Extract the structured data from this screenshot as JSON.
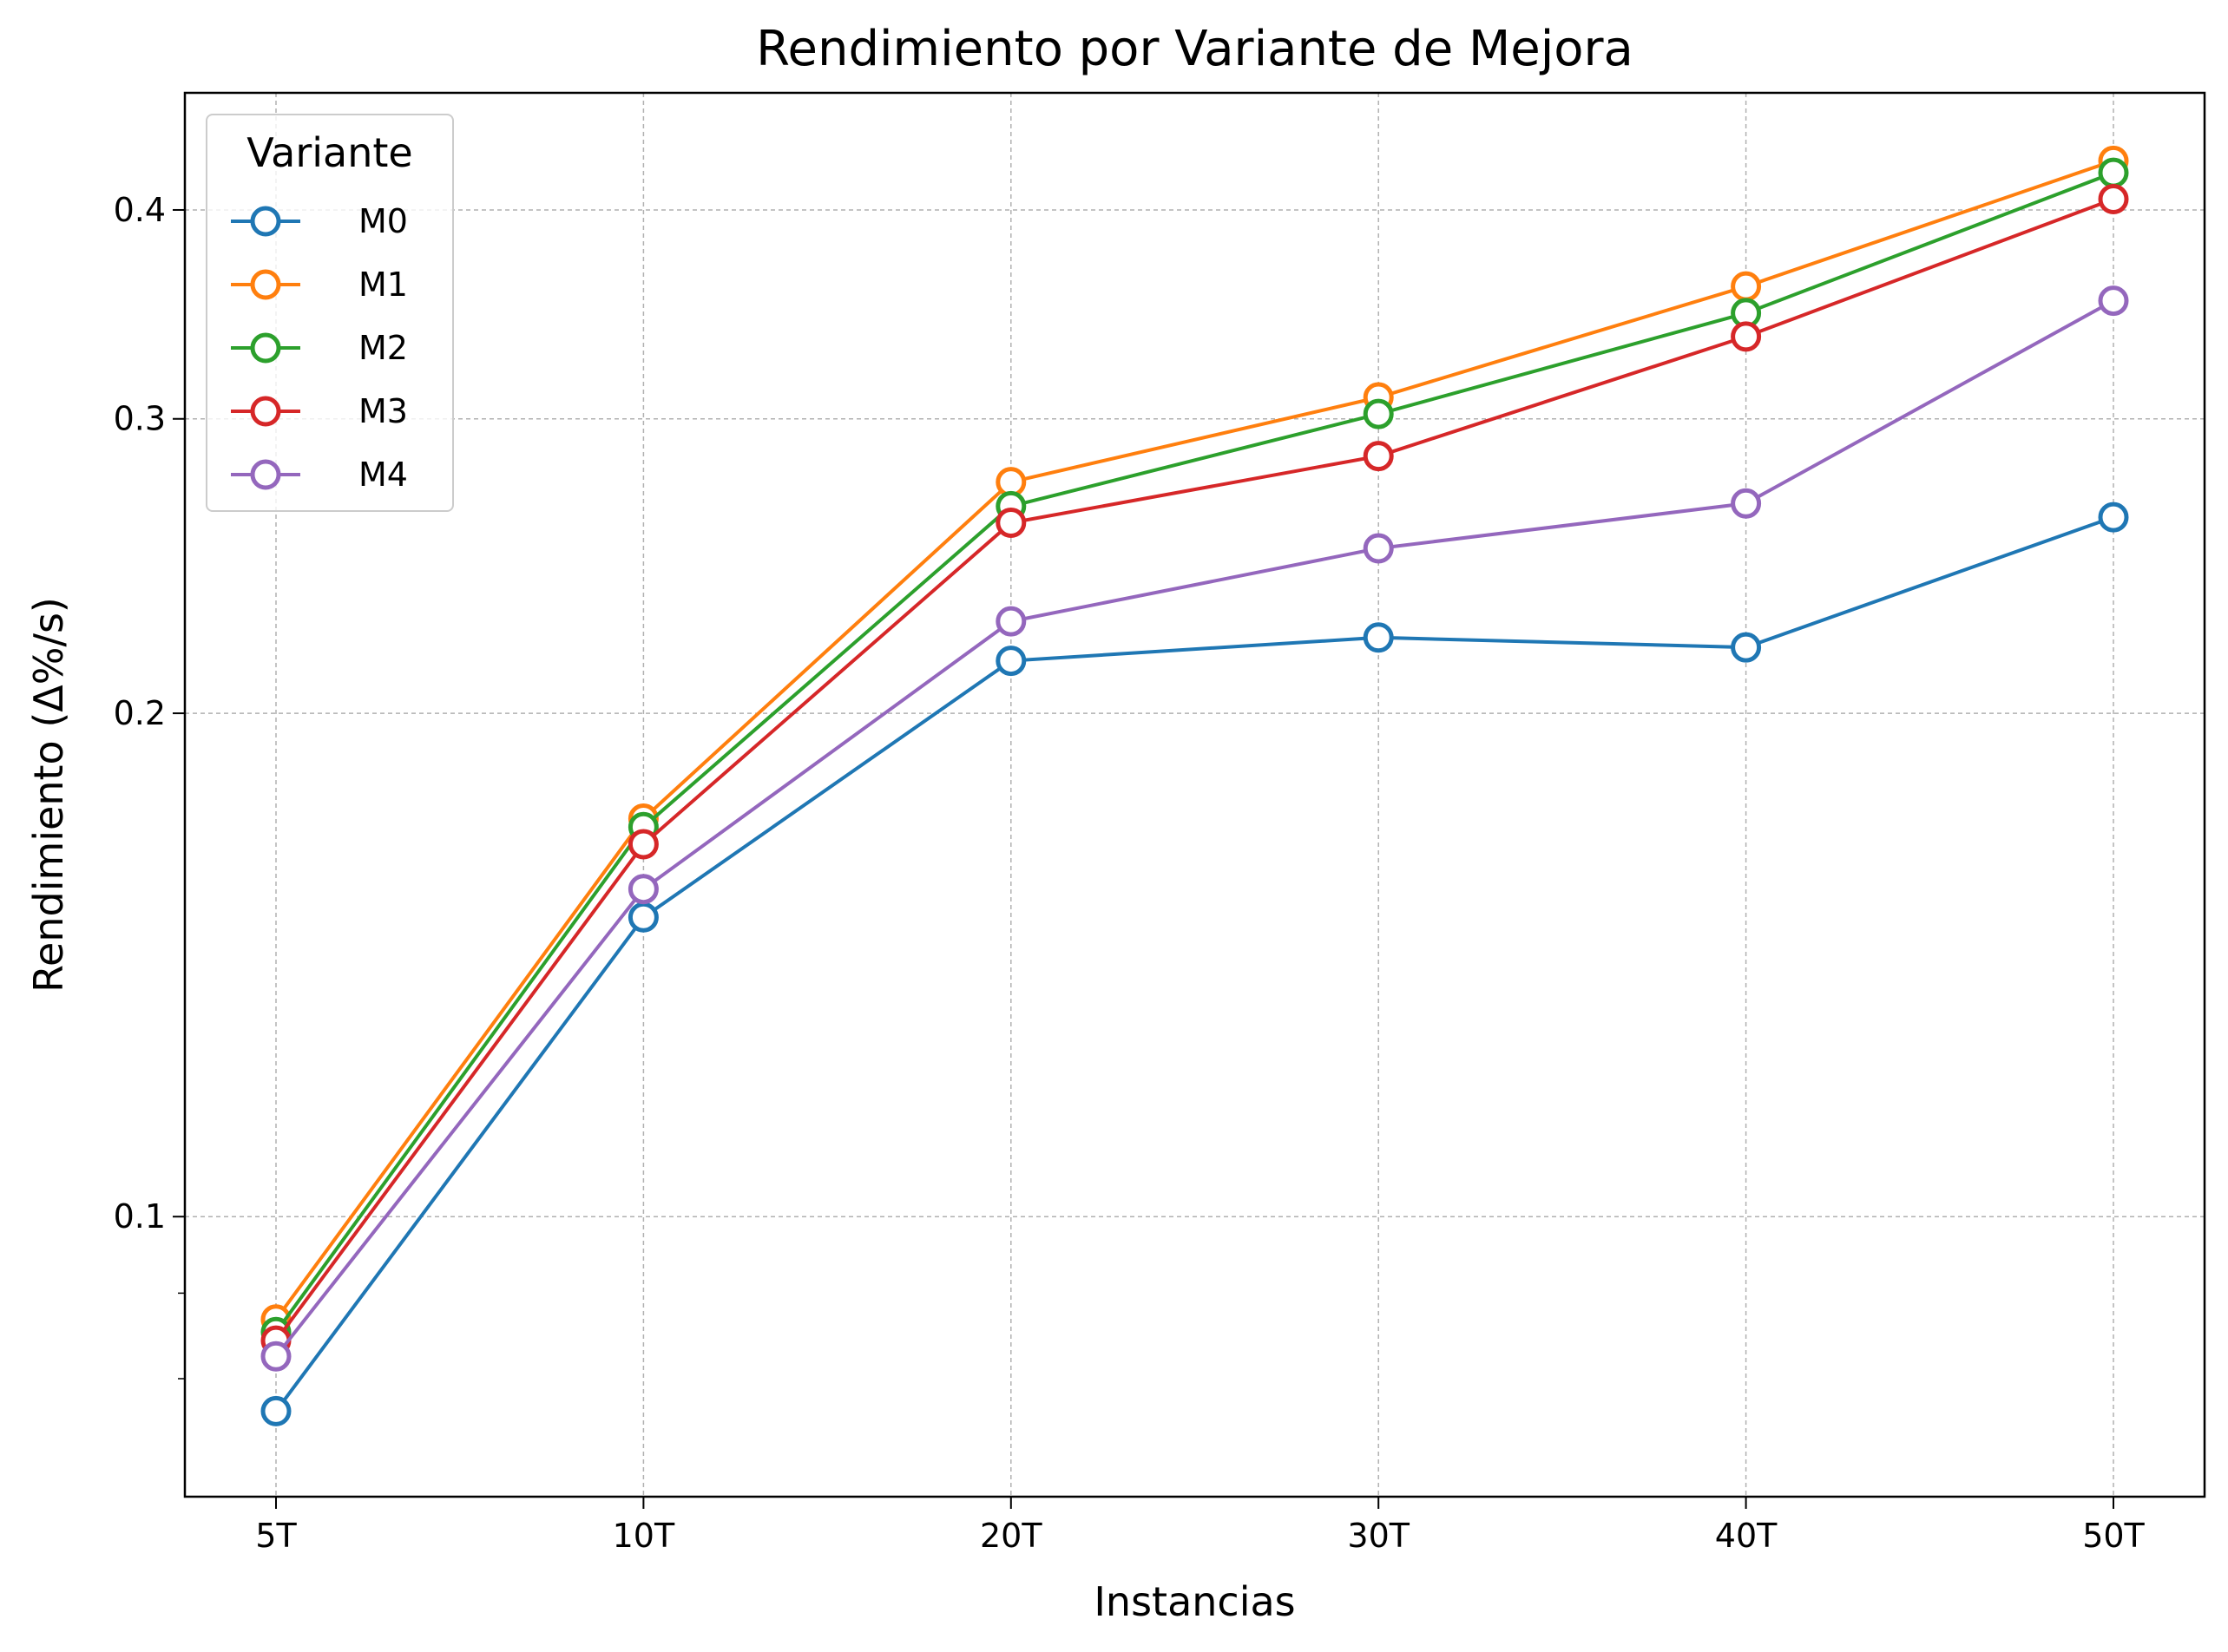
{
  "chart_data": {
    "type": "line",
    "title": "Rendimiento por Variante de Mejora",
    "xlabel": "Instancias",
    "ylabel": "Rendimiento (Δ%/s)",
    "y_scale": "log",
    "ylim": [
      0.068,
      0.47
    ],
    "yticks": [
      0.1,
      0.2,
      0.3,
      0.4
    ],
    "ytick_labels": [
      "0.1",
      "0.2",
      "0.3",
      "0.4"
    ],
    "y_minor_ticks": [
      0.08,
      0.09
    ],
    "grid": true,
    "legend": {
      "title": "Variante",
      "position": "top-left"
    },
    "categories": [
      "5T",
      "10T",
      "20T",
      "30T",
      "40T",
      "50T"
    ],
    "series": [
      {
        "name": "M0",
        "color": "#1f77b4",
        "values": [
          0.0765,
          0.151,
          0.215,
          0.222,
          0.219,
          0.262
        ]
      },
      {
        "name": "M1",
        "color": "#ff7f0e",
        "values": [
          0.0868,
          0.173,
          0.275,
          0.309,
          0.36,
          0.428
        ]
      },
      {
        "name": "M2",
        "color": "#2ca02c",
        "values": [
          0.0853,
          0.171,
          0.266,
          0.302,
          0.347,
          0.421
        ]
      },
      {
        "name": "M3",
        "color": "#d62728",
        "values": [
          0.0843,
          0.167,
          0.26,
          0.285,
          0.336,
          0.406
        ]
      },
      {
        "name": "M4",
        "color": "#9467bd",
        "values": [
          0.0825,
          0.157,
          0.227,
          0.251,
          0.267,
          0.353
        ]
      }
    ]
  }
}
